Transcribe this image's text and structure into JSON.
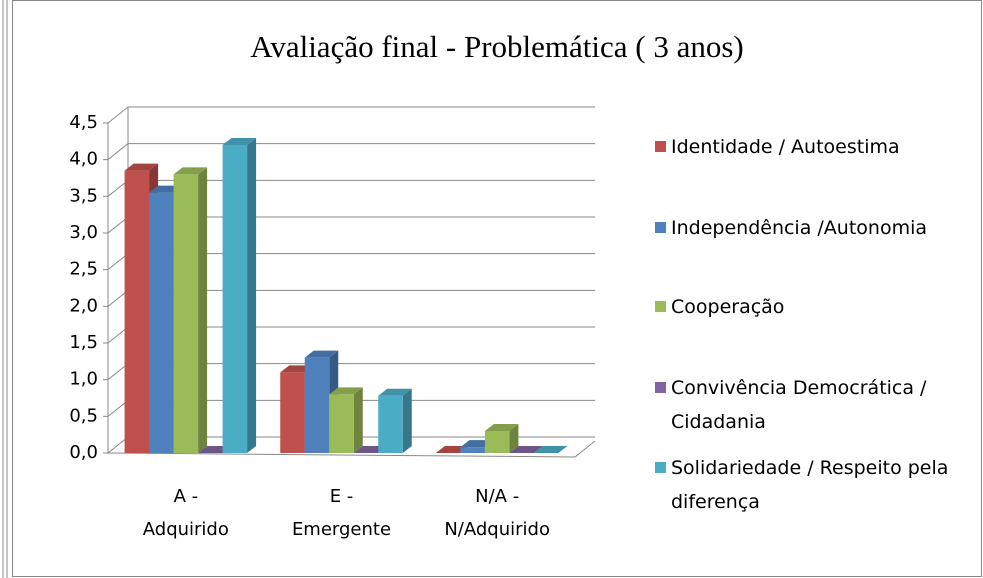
{
  "chart_data": {
    "type": "bar3d",
    "title": "Avaliação final  - Problemática ( 3 anos)",
    "categories": [
      "A - Adquirido",
      "E - Emergente",
      "N/A - N/Adquirido"
    ],
    "series": [
      {
        "name": "Identidade / Autoestima",
        "color": "#c0504d",
        "values": [
          3.85,
          1.1,
          0
        ]
      },
      {
        "name": "Independência /Autonomia",
        "color": "#4f81bd",
        "values": [
          3.55,
          1.3,
          0.08
        ]
      },
      {
        "name": "Cooperação",
        "color": "#9bbb59",
        "values": [
          3.8,
          0.8,
          0.3
        ]
      },
      {
        "name": "Convivência Democrática / Cidadania",
        "color": "#8064a2",
        "values": [
          0,
          0,
          0
        ]
      },
      {
        "name": "Solidariedade / Respeito pela diferença",
        "color": "#4bacc6",
        "values": [
          4.2,
          0.78,
          0
        ]
      }
    ],
    "ylim": [
      0,
      4.5
    ],
    "yticks": [
      {
        "value": 0,
        "label": "0,0"
      },
      {
        "value": 0.5,
        "label": "0,5"
      },
      {
        "value": 1,
        "label": "1,0"
      },
      {
        "value": 1.5,
        "label": "1,5"
      },
      {
        "value": 2,
        "label": "2,0"
      },
      {
        "value": 2.5,
        "label": "2,5"
      },
      {
        "value": 3,
        "label": "3,0"
      },
      {
        "value": 3.5,
        "label": "3,5"
      },
      {
        "value": 4,
        "label": "4,0"
      },
      {
        "value": 4.5,
        "label": "4,5"
      }
    ],
    "grid": true,
    "legend": "right"
  }
}
